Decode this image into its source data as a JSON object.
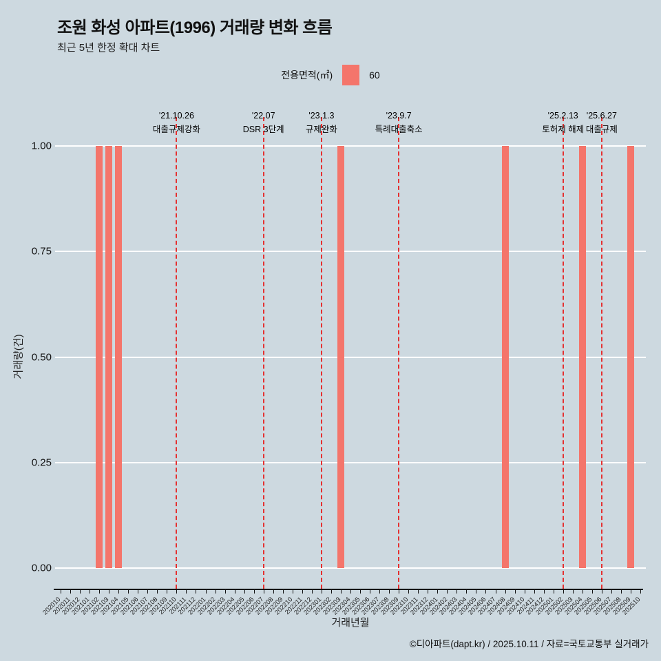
{
  "page": {
    "title": "조원 화성 아파트(1996) 거래량 변화 흐름",
    "subtitle": "최근 5년 한정 확대 차트",
    "footer": "©디아파트(dapt.kr) / 2025.10.11 / 자료=국토교통부 실거래가"
  },
  "legend": {
    "label": "전용면적(㎡)",
    "items": [
      {
        "name": "60",
        "color": "#f4756b"
      }
    ]
  },
  "colors": {
    "background": "#cdd9e0",
    "bar": "#f4756b",
    "event_line": "#e53030",
    "gridline": "#ffffff"
  },
  "chart_data": {
    "type": "bar",
    "title": "조원 화성 아파트(1996) 거래량 변화 흐름",
    "subtitle": "최근 5년 한정 확대 차트",
    "xlabel": "거래년월",
    "ylabel": "거래량(건)",
    "ylim": [
      0,
      1
    ],
    "grid": "horizontal-white",
    "legend_position": "top-center",
    "yticks": [
      {
        "label": "0.00",
        "value": 0
      },
      {
        "label": "0.25",
        "value": 0.25
      },
      {
        "label": "0.50",
        "value": 0.5
      },
      {
        "label": "0.75",
        "value": 0.75
      },
      {
        "label": "1.00",
        "value": 1
      }
    ],
    "categories": [
      "202010",
      "202011",
      "202012",
      "202101",
      "202102",
      "202103",
      "202104",
      "202105",
      "202106",
      "202107",
      "202108",
      "202109",
      "202110",
      "202111",
      "202112",
      "202201",
      "202202",
      "202203",
      "202204",
      "202205",
      "202206",
      "202207",
      "202208",
      "202209",
      "202210",
      "202211",
      "202212",
      "202301",
      "202302",
      "202303",
      "202304",
      "202305",
      "202306",
      "202307",
      "202308",
      "202309",
      "202310",
      "202311",
      "202312",
      "202401",
      "202402",
      "202403",
      "202404",
      "202405",
      "202406",
      "202407",
      "202408",
      "202409",
      "202410",
      "202411",
      "202412",
      "202501",
      "202502",
      "202503",
      "202504",
      "202505",
      "202506",
      "202507",
      "202508",
      "202509",
      "202510"
    ],
    "series": [
      {
        "name": "60",
        "color": "#f4756b",
        "bars": [
          {
            "month": "202102",
            "value": 1
          },
          {
            "month": "202103",
            "value": 1
          },
          {
            "month": "202104",
            "value": 1
          },
          {
            "month": "202303",
            "value": 1
          },
          {
            "month": "202408",
            "value": 1
          },
          {
            "month": "202504",
            "value": 1
          },
          {
            "month": "202509",
            "value": 1
          }
        ]
      }
    ],
    "events": [
      {
        "month": "202110",
        "date": "'21.10.26",
        "label": "대출규제강화"
      },
      {
        "month": "202207",
        "date": "'22.07",
        "label": "DSR 3단계"
      },
      {
        "month": "202301",
        "date": "'23.1.3",
        "label": "규제완화"
      },
      {
        "month": "202309",
        "date": "'23.9.7",
        "label": "특례대출축소"
      },
      {
        "month": "202502",
        "date": "'25.2.13",
        "label": "토허제 해제"
      },
      {
        "month": "202506",
        "date": "'25.6.27",
        "label": "대출규제"
      }
    ]
  }
}
